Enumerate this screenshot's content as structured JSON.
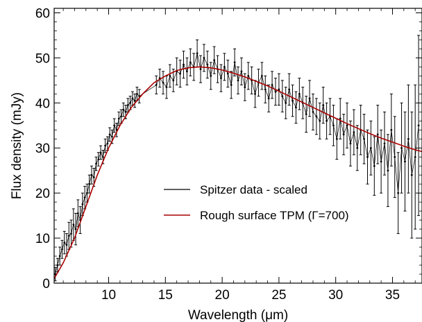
{
  "chart_data": {
    "type": "scatter",
    "xlabel": "Wavelength (μm)",
    "ylabel": "Flux density (mJy)",
    "xlim": [
      5.2,
      37.6
    ],
    "ylim": [
      0,
      61
    ],
    "x_ticks": [
      10,
      15,
      20,
      25,
      30,
      35
    ],
    "y_ticks": [
      0,
      10,
      20,
      30,
      40,
      50,
      60
    ],
    "grid": false,
    "legend_position": "center-right",
    "series": [
      {
        "name": "Spitzer data - scaled",
        "color": "#000000",
        "style": "points with error bars",
        "x": [
          5.3,
          5.5,
          5.7,
          5.9,
          6.1,
          6.3,
          6.5,
          6.7,
          6.9,
          7.1,
          7.3,
          7.5,
          7.7,
          7.9,
          8.1,
          8.3,
          8.5,
          8.7,
          8.9,
          9.1,
          9.3,
          9.5,
          9.7,
          9.9,
          10.1,
          10.3,
          10.5,
          10.7,
          10.9,
          11.1,
          11.3,
          11.5,
          11.7,
          11.9,
          12.1,
          12.3,
          12.5,
          12.7,
          14.2,
          14.5,
          14.8,
          15.1,
          15.4,
          15.7,
          16.0,
          16.3,
          16.6,
          16.9,
          17.2,
          17.5,
          17.8,
          18.1,
          18.4,
          18.7,
          19.0,
          19.3,
          19.6,
          19.9,
          20.2,
          20.5,
          20.8,
          21.1,
          21.4,
          21.7,
          22.0,
          22.3,
          22.6,
          22.9,
          23.2,
          23.5,
          23.8,
          24.1,
          24.4,
          24.7,
          25.0,
          25.3,
          25.6,
          25.9,
          26.2,
          26.5,
          26.8,
          27.1,
          27.4,
          27.7,
          28.0,
          28.3,
          28.6,
          28.9,
          29.2,
          29.5,
          29.8,
          30.1,
          30.4,
          30.7,
          31.0,
          31.3,
          31.6,
          31.9,
          32.2,
          32.5,
          32.8,
          33.1,
          33.4,
          33.7,
          34.0,
          34.3,
          34.6,
          34.9,
          35.2,
          35.5,
          35.8,
          36.1,
          36.4,
          36.7,
          37.0,
          37.3
        ],
        "y": [
          2.0,
          4.0,
          6.0,
          7.5,
          9.0,
          8.5,
          10.5,
          11.0,
          13.0,
          12.0,
          15.5,
          14.0,
          17.5,
          19.0,
          20.0,
          22.0,
          24.0,
          23.5,
          26.5,
          27.5,
          29.0,
          28.0,
          30.5,
          31.0,
          33.0,
          32.5,
          35.0,
          34.0,
          36.5,
          37.0,
          38.5,
          38.0,
          39.5,
          40.0,
          41.0,
          40.5,
          42.0,
          41.5,
          44.0,
          45.5,
          44.5,
          43.5,
          46.0,
          45.0,
          47.0,
          46.5,
          48.5,
          47.0,
          49.0,
          48.0,
          51.0,
          47.5,
          50.0,
          48.5,
          46.0,
          49.5,
          47.5,
          45.5,
          48.0,
          46.5,
          44.0,
          49.0,
          45.0,
          47.0,
          43.5,
          46.0,
          45.0,
          42.0,
          44.5,
          46.0,
          43.0,
          41.0,
          44.0,
          42.5,
          43.0,
          41.5,
          40.0,
          43.0,
          40.5,
          39.0,
          42.0,
          40.0,
          37.5,
          41.0,
          38.0,
          37.0,
          36.0,
          39.5,
          36.0,
          37.0,
          35.0,
          32.0,
          36.5,
          33.0,
          35.0,
          31.0,
          33.5,
          30.0,
          34.0,
          32.0,
          28.0,
          30.0,
          26.0,
          33.0,
          27.0,
          31.0,
          25.0,
          34.0,
          28.0,
          20.0,
          30.0,
          27.0,
          32.0,
          24.0,
          28.0,
          35.0
        ],
        "errors": [
          1.5,
          1.5,
          2.0,
          2.0,
          2.5,
          2.5,
          3.0,
          3.0,
          3.5,
          3.5,
          3.0,
          3.0,
          2.5,
          2.5,
          2.0,
          2.0,
          2.0,
          2.0,
          1.5,
          1.5,
          1.5,
          1.5,
          1.5,
          1.5,
          1.5,
          1.5,
          1.5,
          1.5,
          1.5,
          1.5,
          1.5,
          1.5,
          1.5,
          1.5,
          1.5,
          1.5,
          1.5,
          1.5,
          2.0,
          2.0,
          2.5,
          2.5,
          2.5,
          2.5,
          3.0,
          3.0,
          3.0,
          3.0,
          3.0,
          3.0,
          3.0,
          3.0,
          3.0,
          3.0,
          3.0,
          3.0,
          3.0,
          3.0,
          3.0,
          3.0,
          3.0,
          3.0,
          3.0,
          3.0,
          3.0,
          3.0,
          3.0,
          3.0,
          3.0,
          3.0,
          3.0,
          3.0,
          3.0,
          3.0,
          3.5,
          3.5,
          3.5,
          3.5,
          3.5,
          3.5,
          3.5,
          3.5,
          4.0,
          4.0,
          4.0,
          4.0,
          4.0,
          4.0,
          4.0,
          4.0,
          4.5,
          4.5,
          4.5,
          4.5,
          5.0,
          5.0,
          5.0,
          5.0,
          5.5,
          5.5,
          6.0,
          6.0,
          6.5,
          6.5,
          7.0,
          7.0,
          8.0,
          8.0,
          9.0,
          9.0,
          10.0,
          11.0,
          12.0,
          14.0,
          16.0,
          20.0
        ]
      },
      {
        "name": "Rough surface TPM (Γ=700)",
        "color": "#aa0000",
        "style": "line",
        "x": [
          5.2,
          6,
          7,
          8,
          9,
          10,
          11,
          12,
          13,
          14,
          15,
          16,
          17,
          18,
          19,
          20,
          21,
          22,
          23,
          24,
          25,
          26,
          27,
          28,
          29,
          30,
          31,
          32,
          33,
          34,
          35,
          36,
          37,
          37.6
        ],
        "y": [
          1.0,
          4.5,
          10.0,
          17.0,
          24.0,
          30.0,
          35.0,
          39.0,
          42.0,
          44.5,
          46.0,
          47.2,
          47.8,
          48.0,
          47.8,
          47.3,
          46.6,
          45.8,
          44.8,
          43.8,
          42.6,
          41.4,
          40.2,
          39.0,
          37.8,
          36.6,
          35.4,
          34.3,
          33.2,
          32.2,
          31.3,
          30.4,
          29.6,
          29.2
        ]
      }
    ]
  }
}
